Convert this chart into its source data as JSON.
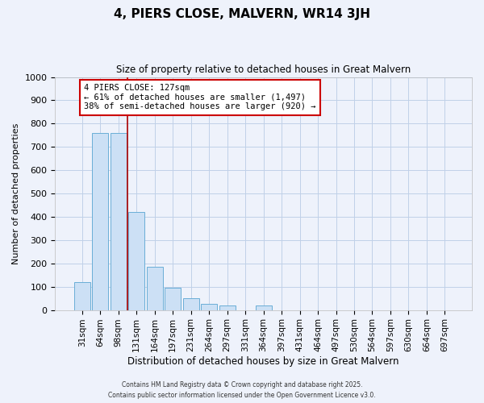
{
  "title": "4, PIERS CLOSE, MALVERN, WR14 3JH",
  "subtitle": "Size of property relative to detached houses in Great Malvern",
  "xlabel": "Distribution of detached houses by size in Great Malvern",
  "ylabel": "Number of detached properties",
  "bin_labels": [
    "31sqm",
    "64sqm",
    "98sqm",
    "131sqm",
    "164sqm",
    "197sqm",
    "231sqm",
    "264sqm",
    "297sqm",
    "331sqm",
    "364sqm",
    "397sqm",
    "431sqm",
    "464sqm",
    "497sqm",
    "530sqm",
    "564sqm",
    "597sqm",
    "630sqm",
    "664sqm",
    "697sqm"
  ],
  "bar_values": [
    120,
    760,
    760,
    420,
    185,
    95,
    50,
    25,
    20,
    0,
    20,
    0,
    0,
    0,
    0,
    0,
    0,
    0,
    0,
    0,
    0
  ],
  "bar_color": "#cce0f5",
  "bar_edge_color": "#6aaed6",
  "vline_index": 3,
  "vline_color": "#aa0000",
  "annotation_title": "4 PIERS CLOSE: 127sqm",
  "annotation_line1": "← 61% of detached houses are smaller (1,497)",
  "annotation_line2": "38% of semi-detached houses are larger (920) →",
  "annotation_box_facecolor": "#ffffff",
  "annotation_box_edgecolor": "#cc0000",
  "ylim": [
    0,
    1000
  ],
  "yticks": [
    0,
    100,
    200,
    300,
    400,
    500,
    600,
    700,
    800,
    900,
    1000
  ],
  "grid_color": "#c0d0e8",
  "background_color": "#eef2fb",
  "footer1": "Contains HM Land Registry data © Crown copyright and database right 2025.",
  "footer2": "Contains public sector information licensed under the Open Government Licence v3.0."
}
